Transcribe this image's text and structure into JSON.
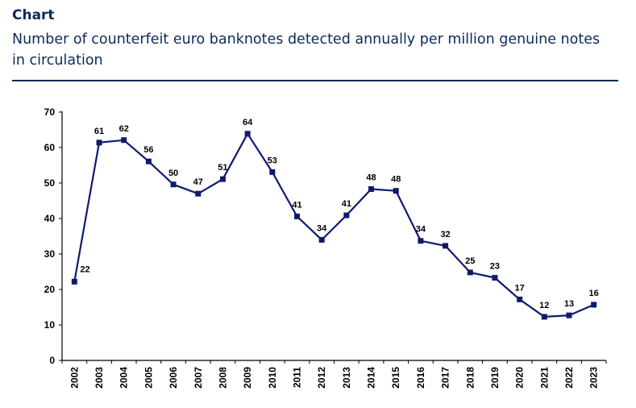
{
  "header": {
    "label": "Chart",
    "title": "Number of counterfeit euro banknotes detected annually per million genuine notes in circulation"
  },
  "colors": {
    "title": "#0b2a5b",
    "series": "#0f1a6e",
    "axis": "#000000"
  },
  "chart_data": {
    "type": "line",
    "title": "Number of counterfeit euro banknotes detected annually per million genuine notes in circulation",
    "xlabel": "",
    "ylabel": "",
    "ylim": [
      0,
      70
    ],
    "yticks": [
      0,
      10,
      20,
      30,
      40,
      50,
      60,
      70
    ],
    "grid": false,
    "legend": "none",
    "categories": [
      "2002",
      "2003",
      "2004",
      "2005",
      "2006",
      "2007",
      "2008",
      "2009",
      "2010",
      "2011",
      "2012",
      "2013",
      "2014",
      "2015",
      "2016",
      "2017",
      "2018",
      "2019",
      "2020",
      "2021",
      "2022",
      "2023"
    ],
    "series": [
      {
        "values": [
          22,
          61,
          62,
          56,
          50,
          47,
          51,
          64,
          53,
          41,
          34,
          41,
          48,
          48,
          34,
          32,
          25,
          23,
          17,
          12,
          13,
          16
        ],
        "plotted": [
          22.2,
          61.4,
          62.1,
          56.1,
          49.6,
          47.0,
          51.1,
          63.9,
          53.1,
          40.6,
          34.0,
          40.9,
          48.3,
          47.8,
          33.7,
          32.3,
          24.8,
          23.3,
          17.2,
          12.3,
          12.7,
          15.7
        ]
      }
    ]
  }
}
